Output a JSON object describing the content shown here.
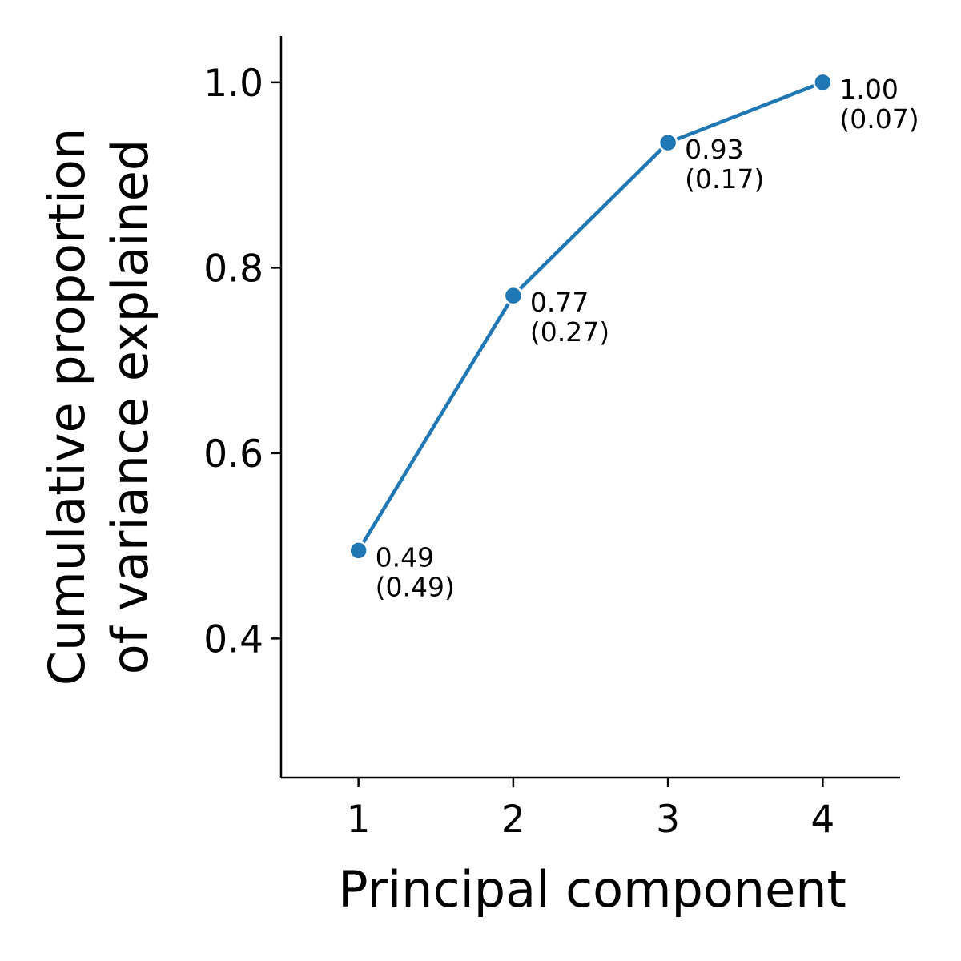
{
  "chart_data": {
    "type": "line",
    "title": "",
    "xlabel": "Principal component",
    "ylabel_lines": [
      "Cumulative proportion",
      "of variance explained"
    ],
    "x": [
      1,
      2,
      3,
      4
    ],
    "series": [
      {
        "values": [
          0.495,
          0.77,
          0.935,
          1.0
        ],
        "labels": [
          "0.49",
          "0.77",
          "0.93",
          "1.00"
        ],
        "sublabels": [
          "(0.49)",
          "(0.27)",
          "(0.17)",
          "(0.07)"
        ],
        "color": "#1f77b4"
      }
    ],
    "xticks": [
      1,
      2,
      3,
      4
    ],
    "xtick_labels": [
      "1",
      "2",
      "3",
      "4"
    ],
    "yticks": [
      0.4,
      0.6,
      0.8,
      1.0
    ],
    "ytick_labels": [
      "0.4",
      "0.6",
      "0.8",
      "1.0"
    ],
    "xlim": [
      0.5,
      4.5
    ],
    "ylim": [
      0.25,
      1.05
    ],
    "grid": false,
    "spines": [
      "left",
      "bottom"
    ]
  }
}
